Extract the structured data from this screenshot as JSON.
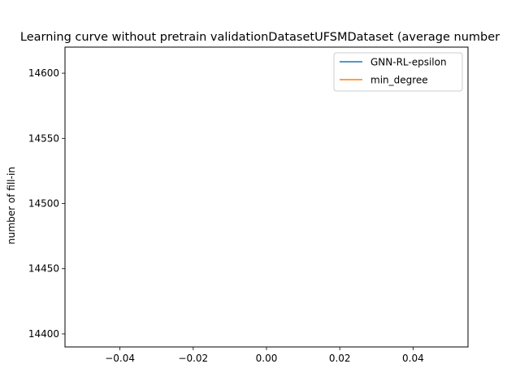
{
  "chart_data": {
    "type": "line",
    "title": "Learning curve without pretrain validationDatasetUFSMDataset (average number",
    "xlabel": "",
    "ylabel": "number of fill-in",
    "xlim": [
      -0.055,
      0.055
    ],
    "ylim": [
      14390,
      14620
    ],
    "x_ticks": [
      -0.04,
      -0.02,
      0.0,
      0.02,
      0.04
    ],
    "x_tick_labels": [
      "−0.04",
      "−0.02",
      "0.00",
      "0.02",
      "0.04"
    ],
    "y_ticks": [
      14400,
      14450,
      14500,
      14550,
      14600
    ],
    "y_tick_labels": [
      "14400",
      "14450",
      "14500",
      "14550",
      "14600"
    ],
    "grid": false,
    "legend_position": "top-right",
    "series": [
      {
        "name": "GNN-RL-epsilon",
        "color": "#1f77b4",
        "x": [],
        "y": []
      },
      {
        "name": "min_degree",
        "color": "#ff7f0e",
        "x": [],
        "y": []
      }
    ]
  }
}
